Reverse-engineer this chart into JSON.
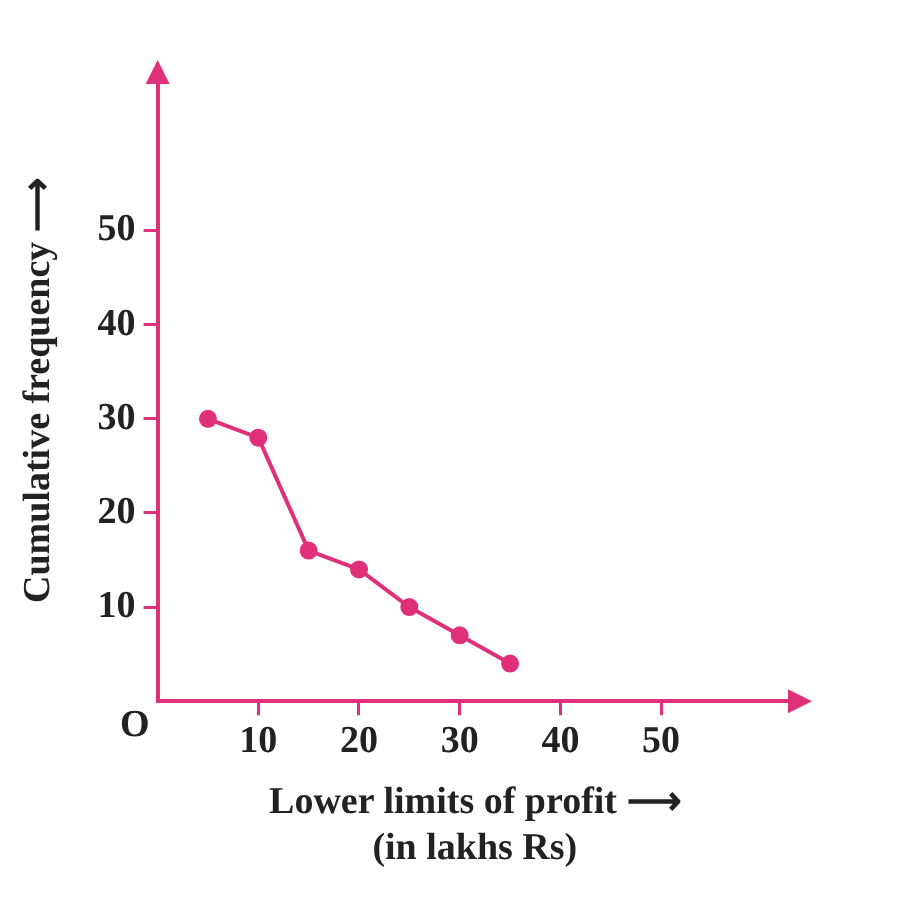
{
  "chart_data": {
    "type": "line",
    "xlabel": "Lower limits of profit ⟶\n(in lakhs Rs)",
    "ylabel": "Cumulative frequency ⟶",
    "x": [
      5,
      10,
      15,
      20,
      25,
      30,
      35
    ],
    "series": [
      {
        "color": "#e0307a",
        "values": [
          30,
          28,
          16,
          14,
          10,
          7,
          4
        ]
      }
    ],
    "xlim": [
      0,
      63
    ],
    "ylim": [
      0,
      66
    ],
    "xticks": [
      10,
      20,
      30,
      40,
      50
    ],
    "yticks": [
      10,
      20,
      30,
      40,
      50
    ],
    "grid": false,
    "legend": false,
    "marker": "circle",
    "line_style": "solid",
    "annotations": [
      "O"
    ]
  }
}
